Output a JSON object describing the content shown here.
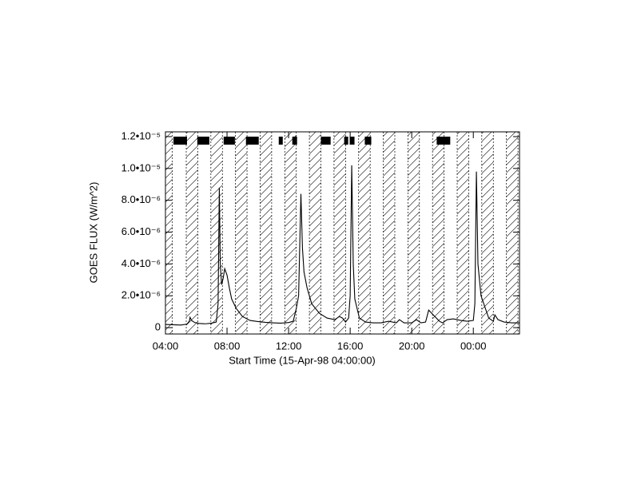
{
  "chart_data": {
    "type": "line",
    "xlabel": "Start Time (15-Apr-98 04:00:00)",
    "ylabel": "GOES FLUX (W/m^2)",
    "xlim": [
      0,
      23
    ],
    "xticks": [
      {
        "value": 0,
        "label": "04:00"
      },
      {
        "value": 4,
        "label": "08:00"
      },
      {
        "value": 8,
        "label": "12:00"
      },
      {
        "value": 12,
        "label": "16:00"
      },
      {
        "value": 16,
        "label": "20:00"
      },
      {
        "value": 20,
        "label": "00:00"
      }
    ],
    "ylim": [
      -4e-07,
      1.23e-05
    ],
    "yticks": [
      0,
      {
        "value": 2e-06,
        "label": "2.0•10⁻⁶"
      },
      {
        "value": 4e-06,
        "label": "4.0•10⁻⁶"
      },
      {
        "value": 6e-06,
        "label": "6.0•10⁻⁶"
      },
      {
        "value": 8e-06,
        "label": "8.0•10⁻⁶"
      },
      {
        "value": 1e-05,
        "label": "1.0•10⁻⁵"
      },
      {
        "value": 1.2e-05,
        "label": "1.2•10⁻⁵"
      }
    ],
    "hatched_intervals": [
      [
        0,
        0.45
      ],
      [
        1.35,
        2.1
      ],
      [
        2.95,
        3.7
      ],
      [
        4.55,
        5.3
      ],
      [
        6.15,
        6.9
      ],
      [
        7.75,
        8.5
      ],
      [
        9.35,
        10.1
      ],
      [
        10.95,
        11.7
      ],
      [
        12.55,
        13.3
      ],
      [
        14.15,
        14.9
      ],
      [
        15.75,
        16.5
      ],
      [
        17.35,
        18.1
      ],
      [
        18.95,
        19.7
      ],
      [
        20.55,
        21.3
      ],
      [
        22.15,
        22.9
      ]
    ],
    "events": [
      [
        0.52,
        1.4
      ],
      [
        2.07,
        2.85
      ],
      [
        3.78,
        4.51
      ],
      [
        5.23,
        6.06
      ],
      [
        7.36,
        7.62
      ],
      [
        8.24,
        8.55
      ],
      [
        10.1,
        10.73
      ],
      [
        11.61,
        11.87
      ],
      [
        11.97,
        12.28
      ],
      [
        12.95,
        13.37
      ],
      [
        17.62,
        18.5
      ]
    ],
    "series": [
      {
        "color": "#000000",
        "x": [
          0,
          0.5,
          1.0,
          1.4,
          1.55,
          1.6,
          1.7,
          1.9,
          2.2,
          2.6,
          3.0,
          3.3,
          3.42,
          3.5,
          3.56,
          3.65,
          3.75,
          3.85,
          4.0,
          4.15,
          4.3,
          4.6,
          5.0,
          5.5,
          6.0,
          6.5,
          7.0,
          7.5,
          8.0,
          8.3,
          8.5,
          8.65,
          8.8,
          8.9,
          9.0,
          9.2,
          9.5,
          10.0,
          10.5,
          11.0,
          11.3,
          11.5,
          11.7,
          11.9,
          12.0,
          12.1,
          12.2,
          12.3,
          12.6,
          13.0,
          13.5,
          14.0,
          14.5,
          15.0,
          15.2,
          15.5,
          16.0,
          16.3,
          16.6,
          16.9,
          17.1,
          17.3,
          17.5,
          17.8,
          18.0,
          18.3,
          18.7,
          19.2,
          19.6,
          20.0,
          20.1,
          20.2,
          20.3,
          20.5,
          21.0,
          21.3,
          21.4,
          21.6,
          22.0,
          22.5,
          23.0
        ],
        "values": [
          2e-07,
          1.8e-07,
          1.6e-07,
          2.2e-07,
          4e-07,
          6.5e-07,
          4.5e-07,
          3.2e-07,
          2.6e-07,
          2.4e-07,
          2.8e-07,
          3.5e-07,
          1.5e-06,
          8.8e-06,
          4e-06,
          2.7e-06,
          3.1e-06,
          3.7e-06,
          3.3e-06,
          2.5e-06,
          1.8e-06,
          1.2e-06,
          7e-07,
          4.5e-07,
          3.8e-07,
          3.3e-07,
          3e-07,
          2.8e-07,
          3.2e-07,
          4e-07,
          1.2e-06,
          2e-06,
          8.4e-06,
          5e-06,
          3.5e-06,
          2.5e-06,
          1.5e-06,
          9e-07,
          6e-07,
          5e-07,
          7e-07,
          6e-07,
          3.5e-07,
          6e-07,
          2e-06,
          1.02e-05,
          4e-06,
          1.8e-06,
          6e-07,
          3.5e-07,
          3e-07,
          3e-07,
          4e-07,
          3e-07,
          5e-07,
          3e-07,
          3e-07,
          5e-07,
          3e-07,
          3.5e-07,
          1.1e-06,
          9e-07,
          7e-07,
          4e-07,
          3e-07,
          5e-07,
          5.5e-07,
          4.5e-07,
          4e-07,
          4.5e-07,
          1.5e-06,
          9.8e-06,
          4e-06,
          2e-06,
          6e-07,
          4e-07,
          8e-07,
          5e-07,
          3.5e-07,
          3e-07,
          3e-07
        ]
      }
    ]
  }
}
